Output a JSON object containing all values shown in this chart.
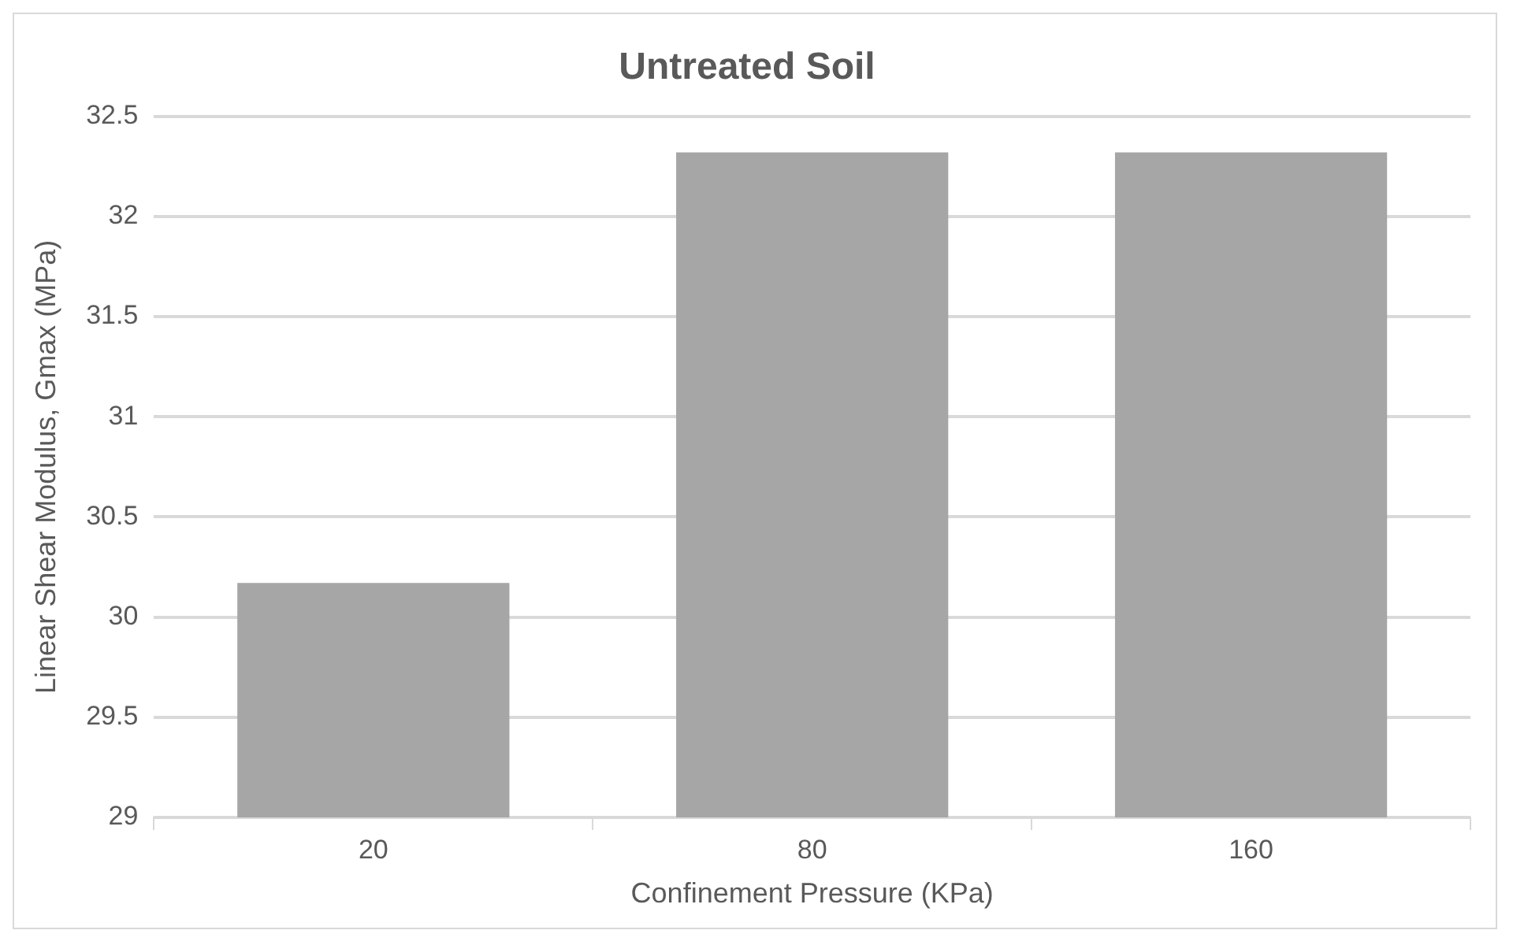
{
  "chart_data": {
    "type": "bar",
    "title": "Untreated Soil",
    "xlabel": "Confinement Pressure (KPa)",
    "ylabel": "Linear Shear Modulus, Gmax (MPa)",
    "categories": [
      "20",
      "80",
      "160"
    ],
    "values": [
      30.17,
      32.32,
      32.32
    ],
    "color": "#a6a6a6",
    "ylim": [
      29,
      32.5
    ],
    "yticks": [
      29,
      29.5,
      30,
      30.5,
      31,
      31.5,
      32,
      32.5
    ],
    "grid": "y",
    "legend": false
  }
}
